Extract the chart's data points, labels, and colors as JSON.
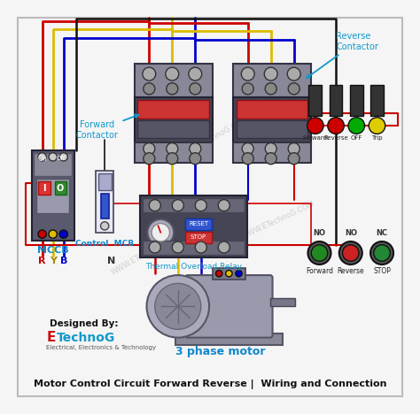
{
  "bg_color": "#f5f5f5",
  "border_color": "#cccccc",
  "watermark": "WWW.ETechnoG.COM",
  "footer_text": "Motor Control Circuit Forward Reverse |  Wiring and Connection",
  "designed_by": "Designed By:",
  "brand_e": "E",
  "brand_rest": "TechnoG",
  "brand_sub": "Electrical, Electronics & Technology",
  "motor_label": "3 phase motor",
  "mccb_label": "MCCB",
  "control_mcb_label": "Control  MCB",
  "forward_contactor_label": "Forward\nContactor",
  "reverse_contactor_label": "Reverse\nContactor",
  "thermal_relay_label": "Thermal Overload Relay",
  "r_label": "R",
  "y_label": "Y",
  "b_label": "B",
  "n_label": "N",
  "wire_red": "#cc0000",
  "wire_yellow": "#ddbb00",
  "wire_blue": "#0000cc",
  "wire_black": "#111111",
  "indicator_forward": "#cc0000",
  "indicator_reverse": "#cc0000",
  "indicator_off": "#00aa00",
  "indicator_trip": "#ddcc00",
  "btn_forward_color": "#228822",
  "btn_reverse_color": "#cc2222",
  "btn_stop_color": "#228822",
  "label_forward_ind": "Forward",
  "label_reverse_ind": "Reverse",
  "label_off_ind": "OFF",
  "label_trip_ind": "Trip",
  "label_forward_btn": "Forward",
  "label_reverse_btn": "Reverse",
  "label_stop_btn": "STOP",
  "no_label": "NO",
  "nc_label": "NC"
}
